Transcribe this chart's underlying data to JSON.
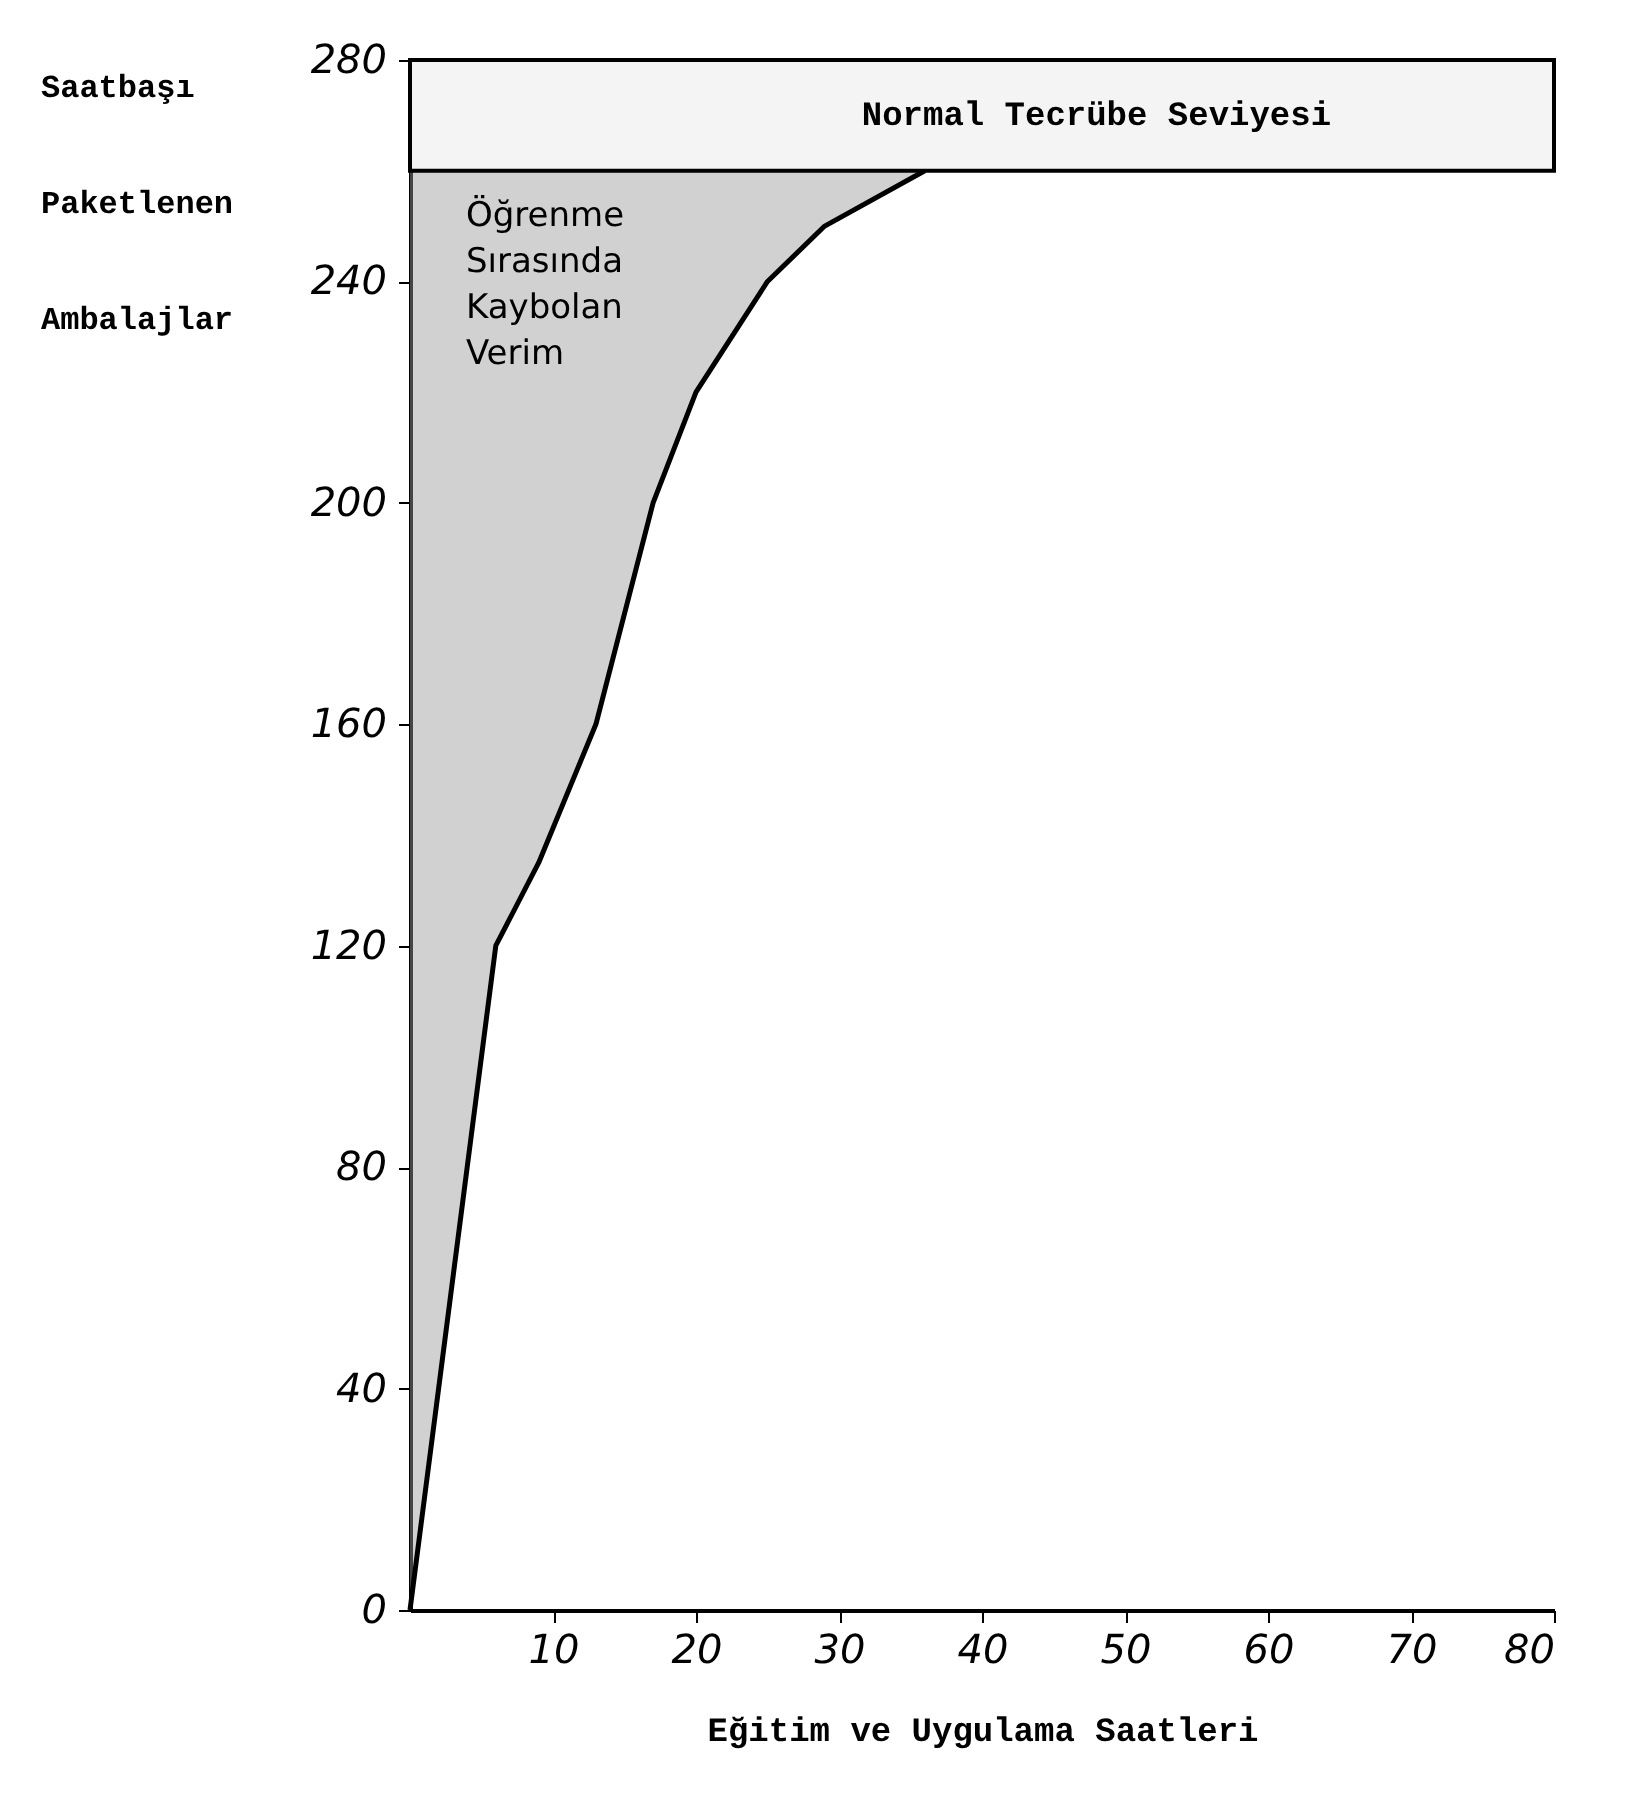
{
  "chart_data": {
    "type": "line",
    "xlabel": "Eğitim ve Uygulama Saatleri",
    "ylabel": "Saatbaşı Paketlenen Ambalajlar",
    "x": [
      0,
      2,
      4,
      6,
      9,
      13,
      17,
      20,
      25,
      29,
      36
    ],
    "series": [
      {
        "color": "#000000",
        "values": [
          0,
          40,
          80,
          120,
          135,
          160,
          200,
          220,
          240,
          250,
          260
        ],
        "lower": [
          0,
          40,
          80,
          120,
          135,
          160,
          200,
          220,
          240,
          250,
          260
        ],
        "upper": [
          260,
          260,
          260,
          260,
          260,
          260,
          260,
          260,
          260,
          260,
          260
        ]
      }
    ],
    "xlim": [
      0,
      80
    ],
    "xticks": [
      10,
      20,
      30,
      40,
      50,
      60,
      70,
      80
    ],
    "ylim": [
      0,
      280
    ],
    "yticks": [
      0,
      40,
      80,
      120,
      160,
      200,
      240,
      280
    ],
    "bands": [
      {
        "axis": "y",
        "from": 260,
        "to": 280,
        "label": "Normal Tecrübe Seviyesi",
        "color": "#f4f4f4"
      }
    ],
    "annotations": [
      "Öğrenme Sırasında Kaybolan Verim"
    ],
    "grid": false,
    "marker": "none",
    "line_style": "solid"
  }
}
